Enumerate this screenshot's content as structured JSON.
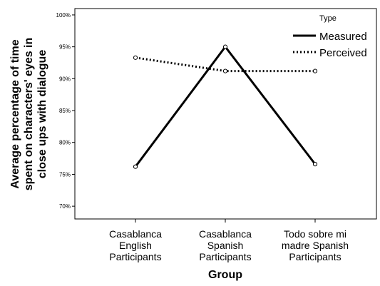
{
  "chart_data": {
    "type": "line",
    "title": "",
    "xlabel": "Group",
    "ylabel_lines": [
      "Average percentage of time",
      "spent on characters' eyes in",
      "close ups with dialogue"
    ],
    "categories": [
      [
        "Casablanca",
        "English",
        "Participants"
      ],
      [
        "Casablanca",
        "Spanish",
        "Participants"
      ],
      [
        "Todo sobre mi",
        "madre Spanish",
        "Participants"
      ]
    ],
    "yticks": [
      "70%",
      "75%",
      "80%",
      "85%",
      "90%",
      "95%",
      "100%"
    ],
    "ylim": [
      0.68,
      1.01
    ],
    "grid": false,
    "legend": {
      "title": "Type",
      "position": "top-right"
    },
    "series": [
      {
        "name": "Measured",
        "style": "solid",
        "values": [
          0.762,
          0.95,
          0.766
        ]
      },
      {
        "name": "Perceived",
        "style": "dotted",
        "values": [
          0.933,
          0.912,
          0.912
        ]
      }
    ],
    "colors": {
      "line": "#000000",
      "marker_fill": "#ffffff",
      "background": "#ffffff"
    }
  }
}
